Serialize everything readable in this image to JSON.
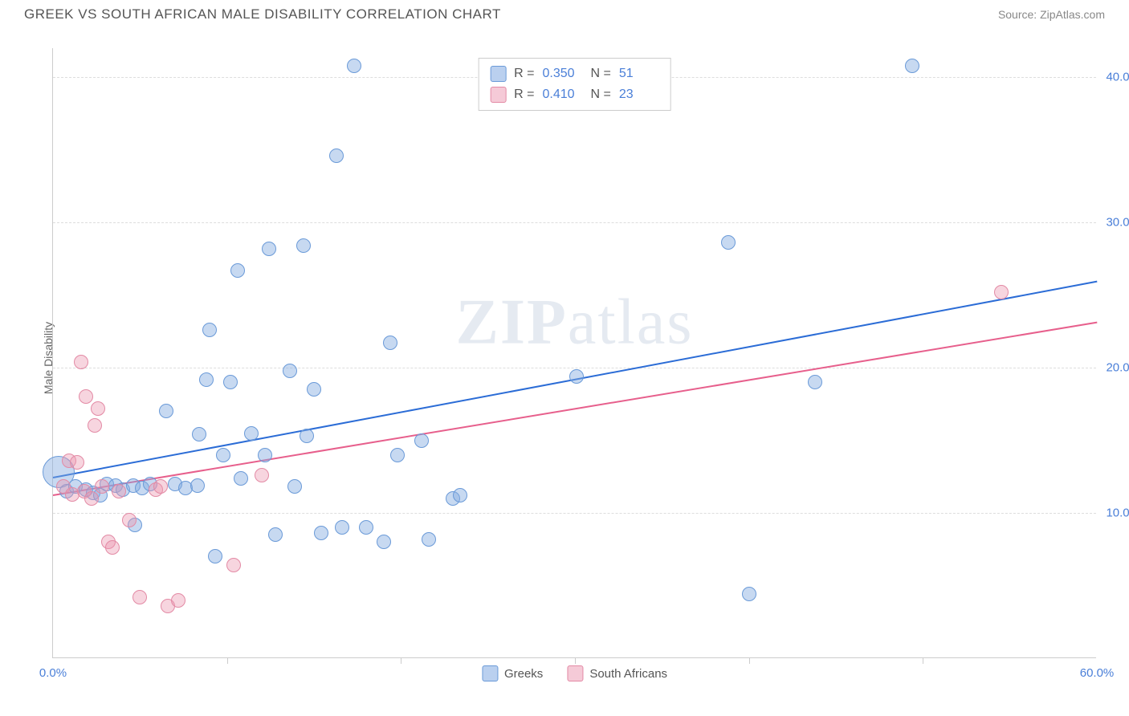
{
  "header": {
    "title": "GREEK VS SOUTH AFRICAN MALE DISABILITY CORRELATION CHART",
    "source": "Source: ZipAtlas.com"
  },
  "watermark": {
    "bold": "ZIP",
    "light": "atlas"
  },
  "chart": {
    "type": "scatter",
    "ylabel": "Male Disability",
    "xlim": [
      0,
      60
    ],
    "ylim": [
      0,
      42
    ],
    "x_ticks": [
      0,
      60
    ],
    "x_tick_labels": [
      "0.0%",
      "60.0%"
    ],
    "x_minor_ticks": [
      10,
      20,
      30,
      40,
      50
    ],
    "y_ticks": [
      10,
      20,
      30,
      40
    ],
    "y_tick_labels": [
      "10.0%",
      "20.0%",
      "30.0%",
      "40.0%"
    ],
    "background_color": "#ffffff",
    "grid_color": "#dddddd",
    "axis_color": "#cccccc",
    "tick_label_color": "#4a7fd8",
    "label_fontsize": 14,
    "label_color": "#666666",
    "point_radius_default": 9,
    "series": [
      {
        "name": "Greeks",
        "fill_color": "rgba(130, 170, 225, 0.45)",
        "stroke_color": "#6a9ad8",
        "trend_color": "#2b6cd6",
        "trend": {
          "x1": 0,
          "y1": 12.5,
          "x2": 60,
          "y2": 26.0
        },
        "points": [
          {
            "x": 0.3,
            "y": 12.8,
            "r": 20
          },
          {
            "x": 0.8,
            "y": 11.5
          },
          {
            "x": 1.3,
            "y": 11.8
          },
          {
            "x": 1.9,
            "y": 11.6
          },
          {
            "x": 2.3,
            "y": 11.4
          },
          {
            "x": 2.7,
            "y": 11.2
          },
          {
            "x": 3.1,
            "y": 12.0
          },
          {
            "x": 3.6,
            "y": 11.9
          },
          {
            "x": 4.0,
            "y": 11.6
          },
          {
            "x": 4.6,
            "y": 11.9
          },
          {
            "x": 5.1,
            "y": 11.7
          },
          {
            "x": 5.6,
            "y": 12.0
          },
          {
            "x": 4.7,
            "y": 9.2
          },
          {
            "x": 7.0,
            "y": 12.0
          },
          {
            "x": 7.6,
            "y": 11.7
          },
          {
            "x": 6.5,
            "y": 17.0
          },
          {
            "x": 8.3,
            "y": 11.9
          },
          {
            "x": 8.4,
            "y": 15.4
          },
          {
            "x": 8.8,
            "y": 19.2
          },
          {
            "x": 9.0,
            "y": 22.6
          },
          {
            "x": 9.3,
            "y": 7.0
          },
          {
            "x": 9.8,
            "y": 14.0
          },
          {
            "x": 10.2,
            "y": 19.0
          },
          {
            "x": 10.6,
            "y": 26.7
          },
          {
            "x": 10.8,
            "y": 12.4
          },
          {
            "x": 11.4,
            "y": 15.5
          },
          {
            "x": 12.2,
            "y": 14.0
          },
          {
            "x": 12.4,
            "y": 28.2
          },
          {
            "x": 12.8,
            "y": 8.5
          },
          {
            "x": 13.6,
            "y": 19.8
          },
          {
            "x": 13.9,
            "y": 11.8
          },
          {
            "x": 14.4,
            "y": 28.4
          },
          {
            "x": 14.6,
            "y": 15.3
          },
          {
            "x": 15.0,
            "y": 18.5
          },
          {
            "x": 15.4,
            "y": 8.6
          },
          {
            "x": 16.3,
            "y": 34.6
          },
          {
            "x": 16.6,
            "y": 9.0
          },
          {
            "x": 17.3,
            "y": 40.8
          },
          {
            "x": 18.0,
            "y": 9.0
          },
          {
            "x": 19.0,
            "y": 8.0
          },
          {
            "x": 19.4,
            "y": 21.7
          },
          {
            "x": 19.8,
            "y": 14.0
          },
          {
            "x": 21.2,
            "y": 15.0
          },
          {
            "x": 21.6,
            "y": 8.2
          },
          {
            "x": 23.0,
            "y": 11.0
          },
          {
            "x": 23.4,
            "y": 11.2
          },
          {
            "x": 30.1,
            "y": 19.4
          },
          {
            "x": 38.8,
            "y": 28.6
          },
          {
            "x": 40.0,
            "y": 4.4
          },
          {
            "x": 43.8,
            "y": 19.0
          },
          {
            "x": 49.4,
            "y": 40.8
          }
        ]
      },
      {
        "name": "South Africans",
        "fill_color": "rgba(235, 150, 175, 0.40)",
        "stroke_color": "#e38aa5",
        "trend_color": "#e75f8c",
        "trend": {
          "x1": 0,
          "y1": 11.3,
          "x2": 60,
          "y2": 23.2
        },
        "points": [
          {
            "x": 0.6,
            "y": 11.8
          },
          {
            "x": 0.9,
            "y": 13.6
          },
          {
            "x": 1.1,
            "y": 11.3
          },
          {
            "x": 1.4,
            "y": 13.5
          },
          {
            "x": 1.6,
            "y": 20.4
          },
          {
            "x": 1.8,
            "y": 11.5
          },
          {
            "x": 1.9,
            "y": 18.0
          },
          {
            "x": 2.2,
            "y": 11.0
          },
          {
            "x": 2.4,
            "y": 16.0
          },
          {
            "x": 2.6,
            "y": 17.2
          },
          {
            "x": 2.8,
            "y": 11.8
          },
          {
            "x": 3.2,
            "y": 8.0
          },
          {
            "x": 3.4,
            "y": 7.6
          },
          {
            "x": 3.8,
            "y": 11.5
          },
          {
            "x": 4.4,
            "y": 9.5
          },
          {
            "x": 5.0,
            "y": 4.2
          },
          {
            "x": 5.9,
            "y": 11.6
          },
          {
            "x": 6.2,
            "y": 11.8
          },
          {
            "x": 6.6,
            "y": 3.6
          },
          {
            "x": 7.2,
            "y": 4.0
          },
          {
            "x": 10.4,
            "y": 6.4
          },
          {
            "x": 12.0,
            "y": 12.6
          },
          {
            "x": 54.5,
            "y": 25.2
          }
        ]
      }
    ],
    "stats_box": {
      "rows": [
        {
          "swatch_fill": "rgba(130,170,225,0.55)",
          "swatch_stroke": "#6a9ad8",
          "R": "0.350",
          "N": "51"
        },
        {
          "swatch_fill": "rgba(235,150,175,0.50)",
          "swatch_stroke": "#e38aa5",
          "R": "0.410",
          "N": "23"
        }
      ],
      "label_R": "R =",
      "label_N": "N ="
    },
    "legend_bottom": {
      "items": [
        {
          "swatch_fill": "rgba(130,170,225,0.55)",
          "swatch_stroke": "#6a9ad8",
          "label": "Greeks"
        },
        {
          "swatch_fill": "rgba(235,150,175,0.50)",
          "swatch_stroke": "#e38aa5",
          "label": "South Africans"
        }
      ]
    }
  }
}
